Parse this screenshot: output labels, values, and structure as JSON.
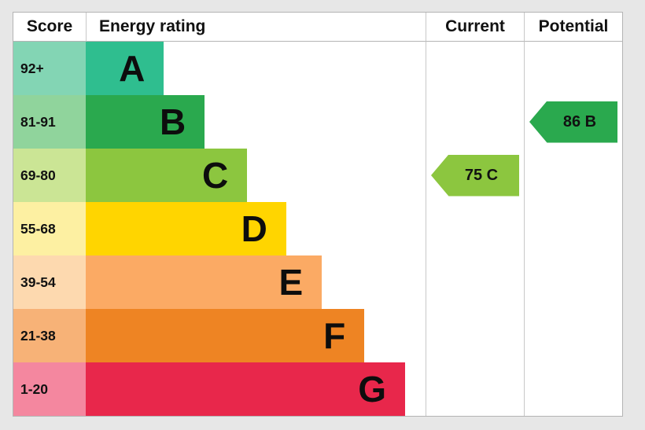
{
  "header": {
    "score": "Score",
    "rating": "Energy rating",
    "current": "Current",
    "potential": "Potential"
  },
  "bands": [
    {
      "score": "92+",
      "letter": "A",
      "bar_color": "#2fbe8f",
      "tint_color": "#83d5b4",
      "width_pct": 23
    },
    {
      "score": "81-91",
      "letter": "B",
      "bar_color": "#2aa94e",
      "tint_color": "#90d49c",
      "width_pct": 35
    },
    {
      "score": "69-80",
      "letter": "C",
      "bar_color": "#8cc63f",
      "tint_color": "#cbe595",
      "width_pct": 47.5
    },
    {
      "score": "55-68",
      "letter": "D",
      "bar_color": "#ffd500",
      "tint_color": "#fdf0a2",
      "width_pct": 59
    },
    {
      "score": "39-54",
      "letter": "E",
      "bar_color": "#fbaa64",
      "tint_color": "#fdd9af",
      "width_pct": 69.5
    },
    {
      "score": "21-38",
      "letter": "F",
      "bar_color": "#ee8423",
      "tint_color": "#f7b277",
      "width_pct": 82
    },
    {
      "score": "1-20",
      "letter": "G",
      "bar_color": "#e8274b",
      "tint_color": "#f4879f",
      "width_pct": 94
    }
  ],
  "current": {
    "label": "75 C",
    "color": "#8cc63f"
  },
  "potential": {
    "label": "86 B",
    "color": "#2aa94e"
  },
  "chart_data": {
    "type": "bar",
    "title": "Energy rating",
    "categories": [
      "A",
      "B",
      "C",
      "D",
      "E",
      "F",
      "G"
    ],
    "score_ranges": [
      "92+",
      "81-91",
      "69-80",
      "55-68",
      "39-54",
      "21-38",
      "1-20"
    ],
    "values": [
      23,
      35,
      47.5,
      59,
      69.5,
      82,
      94
    ],
    "ylabel": "Score",
    "legend_position": "none",
    "grid": false,
    "annotations": [
      {
        "label": "Current",
        "value": 75,
        "band": "C"
      },
      {
        "label": "Potential",
        "value": 86,
        "band": "B"
      }
    ]
  }
}
